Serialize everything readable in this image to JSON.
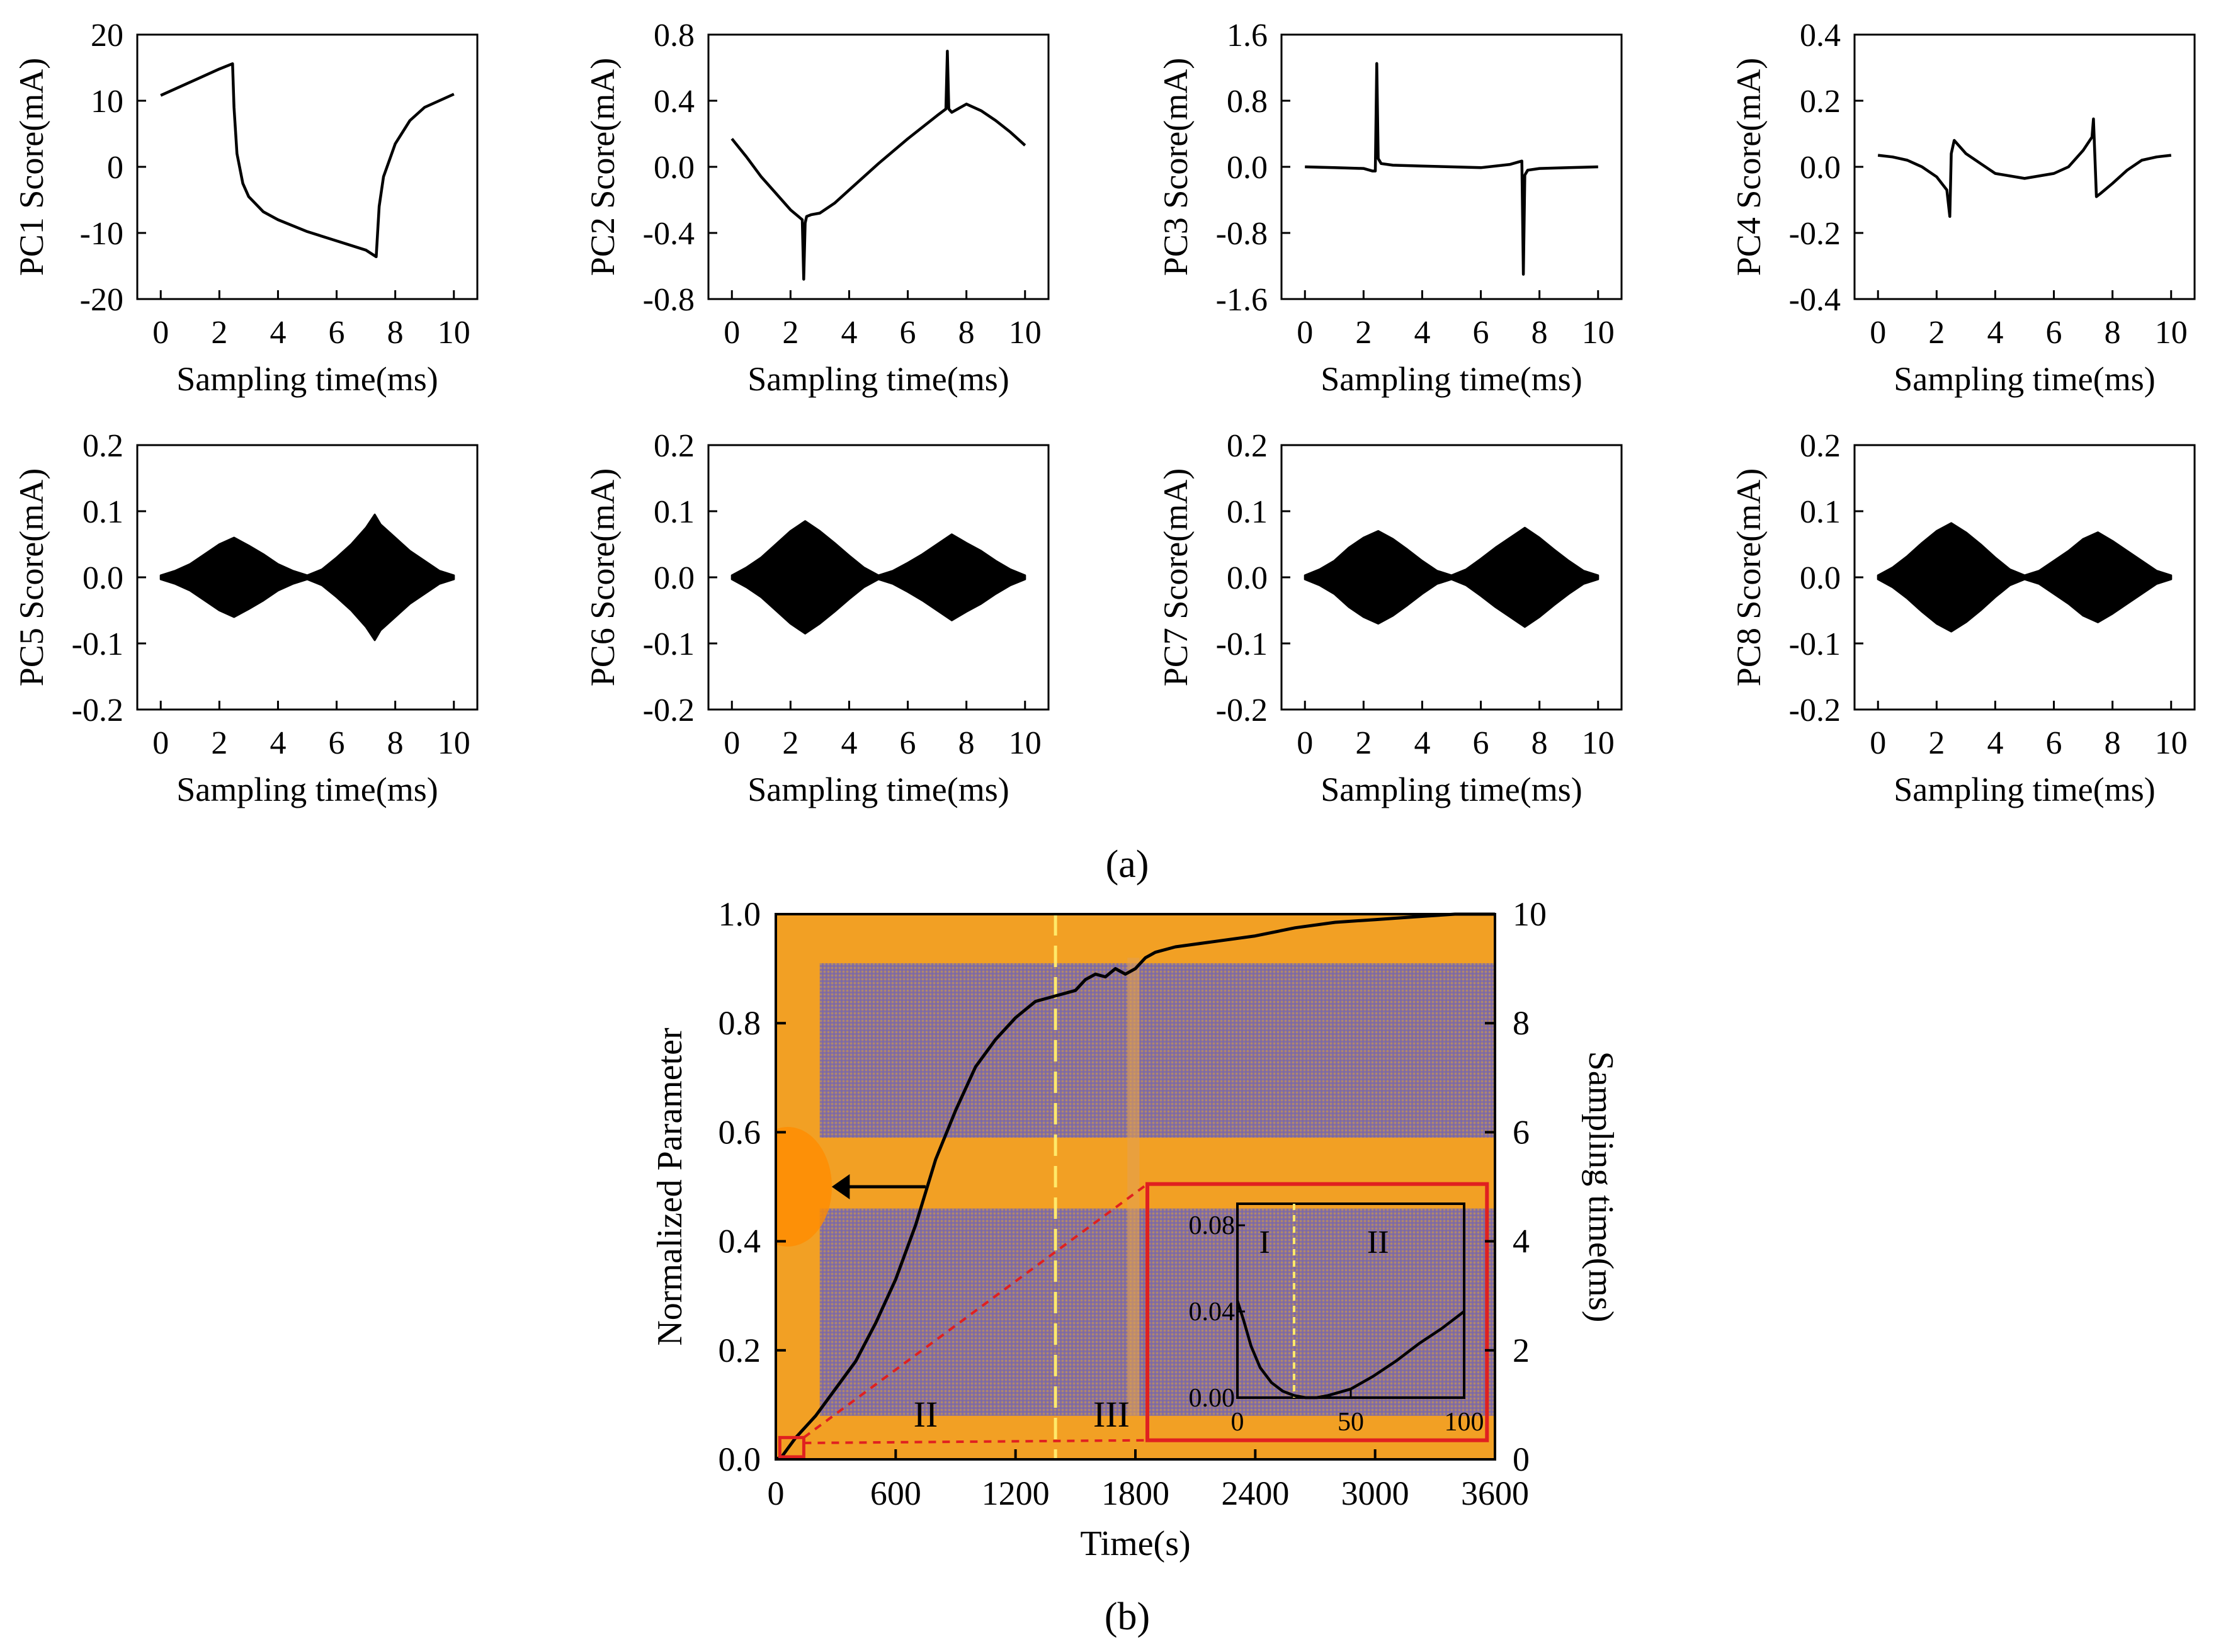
{
  "figure": {
    "panel_a_label": "(a)",
    "panel_b_label": "(b)"
  },
  "chart_data": [
    {
      "id": "pc1",
      "type": "line",
      "ylabel": "PC1 Score(mA)",
      "xlabel": "Sampling time(ms)",
      "xlim": [
        0,
        10
      ],
      "ylim": [
        -20,
        20
      ],
      "xticks": [
        0,
        2,
        4,
        6,
        8,
        10
      ],
      "yticks": [
        -20,
        -10,
        0,
        10,
        20
      ],
      "ytick_labels": [
        "-20",
        "-10",
        "0",
        "10",
        "20"
      ],
      "x": [
        0,
        0.5,
        1,
        1.5,
        2,
        2.45,
        2.5,
        2.6,
        2.8,
        3,
        3.5,
        4,
        5,
        6,
        7,
        7.35,
        7.45,
        7.6,
        8,
        8.5,
        9,
        10
      ],
      "y": [
        10.8,
        11.8,
        12.8,
        13.8,
        14.8,
        15.6,
        9,
        2,
        -2.5,
        -4.5,
        -6.8,
        -8,
        -9.8,
        -11.2,
        -12.6,
        -13.6,
        -6,
        -1.5,
        3.5,
        7,
        9,
        11
      ]
    },
    {
      "id": "pc2",
      "type": "line",
      "ylabel": "PC2 Score(mA)",
      "xlabel": "Sampling time(ms)",
      "xlim": [
        0,
        10
      ],
      "ylim": [
        -0.8,
        0.8
      ],
      "xticks": [
        0,
        2,
        4,
        6,
        8,
        10
      ],
      "yticks": [
        -0.8,
        -0.4,
        0,
        0.4,
        0.8
      ],
      "ytick_labels": [
        "-0.8",
        "-0.4",
        "0.0",
        "0.4",
        "0.8"
      ],
      "x": [
        0,
        0.5,
        1,
        1.5,
        2,
        2.4,
        2.45,
        2.5,
        2.55,
        2.7,
        3,
        3.5,
        4,
        5,
        6,
        7,
        7.3,
        7.35,
        7.4,
        7.5,
        8,
        8.5,
        9,
        9.5,
        10
      ],
      "y": [
        0.17,
        0.06,
        -0.06,
        -0.16,
        -0.26,
        -0.32,
        -0.68,
        -0.34,
        -0.3,
        -0.29,
        -0.28,
        -0.22,
        -0.14,
        0.02,
        0.17,
        0.31,
        0.35,
        0.7,
        0.35,
        0.33,
        0.38,
        0.34,
        0.28,
        0.21,
        0.13
      ]
    },
    {
      "id": "pc3",
      "type": "line",
      "ylabel": "PC3 Score(mA)",
      "xlabel": "Sampling time(ms)",
      "xlim": [
        0,
        10
      ],
      "ylim": [
        -1.6,
        1.6
      ],
      "xticks": [
        0,
        2,
        4,
        6,
        8,
        10
      ],
      "yticks": [
        -1.6,
        -0.8,
        0,
        0.8,
        1.6
      ],
      "ytick_labels": [
        "-1.6",
        "-0.8",
        "0.0",
        "0.8",
        "1.6"
      ],
      "x": [
        0,
        1,
        2,
        2.3,
        2.4,
        2.45,
        2.5,
        2.6,
        3,
        4,
        5,
        6,
        7,
        7.3,
        7.4,
        7.45,
        7.5,
        7.6,
        8,
        9,
        10
      ],
      "y": [
        0,
        -0.01,
        -0.02,
        -0.05,
        -0.05,
        1.25,
        0.1,
        0.04,
        0.02,
        0.01,
        0.0,
        -0.01,
        0.03,
        0.06,
        0.07,
        -1.3,
        -0.1,
        -0.04,
        -0.02,
        -0.01,
        0
      ]
    },
    {
      "id": "pc4",
      "type": "line",
      "ylabel": "PC4 Score(mA)",
      "xlabel": "Sampling time(ms)",
      "xlim": [
        0,
        10
      ],
      "ylim": [
        -0.4,
        0.4
      ],
      "xticks": [
        0,
        2,
        4,
        6,
        8,
        10
      ],
      "yticks": [
        -0.4,
        -0.2,
        0,
        0.2,
        0.4
      ],
      "ytick_labels": [
        "-0.4",
        "-0.2",
        "0.0",
        "0.2",
        "0.4"
      ],
      "x": [
        0,
        0.5,
        1,
        1.5,
        2,
        2.35,
        2.45,
        2.5,
        2.6,
        2.8,
        3,
        3.5,
        4,
        5,
        6,
        6.5,
        7,
        7.3,
        7.35,
        7.45,
        7.6,
        8,
        8.5,
        9,
        9.5,
        10
      ],
      "y": [
        0.035,
        0.03,
        0.02,
        0.0,
        -0.03,
        -0.07,
        -0.15,
        0.04,
        0.08,
        0.06,
        0.04,
        0.01,
        -0.02,
        -0.035,
        -0.02,
        0.0,
        0.05,
        0.09,
        0.145,
        -0.09,
        -0.08,
        -0.05,
        -0.01,
        0.02,
        0.03,
        0.035
      ]
    },
    {
      "id": "pc5",
      "type": "area",
      "ylabel": "PC5 Score(mA)",
      "xlabel": "Sampling time(ms)",
      "xlim": [
        0,
        10
      ],
      "ylim": [
        -0.2,
        0.2
      ],
      "xticks": [
        0,
        2,
        4,
        6,
        8,
        10
      ],
      "yticks": [
        -0.2,
        -0.1,
        0,
        0.1,
        0.2
      ],
      "ytick_labels": [
        "-0.2",
        "-0.1",
        "0.0",
        "0.1",
        "0.2"
      ],
      "x": [
        0,
        0.5,
        1,
        1.5,
        2,
        2.5,
        3,
        3.5,
        4,
        4.5,
        5,
        5.5,
        6,
        6.5,
        7,
        7.3,
        7.5,
        8,
        8.5,
        9,
        9.5,
        10
      ],
      "y_upper": [
        0.003,
        0.01,
        0.02,
        0.035,
        0.05,
        0.06,
        0.048,
        0.035,
        0.02,
        0.01,
        0.003,
        0.012,
        0.03,
        0.05,
        0.075,
        0.095,
        0.08,
        0.06,
        0.04,
        0.025,
        0.01,
        0.003
      ]
    },
    {
      "id": "pc6",
      "type": "area",
      "ylabel": "PC6 Score(mA)",
      "xlabel": "Sampling time(ms)",
      "xlim": [
        0,
        10
      ],
      "ylim": [
        -0.2,
        0.2
      ],
      "xticks": [
        0,
        2,
        4,
        6,
        8,
        10
      ],
      "yticks": [
        -0.2,
        -0.1,
        0,
        0.1,
        0.2
      ],
      "ytick_labels": [
        "-0.2",
        "-0.1",
        "0.0",
        "0.1",
        "0.2"
      ],
      "x": [
        0,
        0.5,
        1,
        1.5,
        2,
        2.5,
        3,
        3.5,
        4,
        4.5,
        5,
        5.5,
        6,
        6.5,
        7,
        7.5,
        8,
        8.5,
        9,
        9.5,
        10
      ],
      "y_upper": [
        0.003,
        0.015,
        0.03,
        0.05,
        0.07,
        0.085,
        0.07,
        0.052,
        0.033,
        0.015,
        0.003,
        0.01,
        0.022,
        0.035,
        0.05,
        0.065,
        0.052,
        0.04,
        0.025,
        0.012,
        0.003
      ]
    },
    {
      "id": "pc7",
      "type": "area",
      "ylabel": "PC7 Score(mA)",
      "xlabel": "Sampling time(ms)",
      "xlim": [
        0,
        10
      ],
      "ylim": [
        -0.2,
        0.2
      ],
      "xticks": [
        0,
        2,
        4,
        6,
        8,
        10
      ],
      "yticks": [
        -0.2,
        -0.1,
        0,
        0.1,
        0.2
      ],
      "ytick_labels": [
        "-0.2",
        "-0.1",
        "0.0",
        "0.1",
        "0.2"
      ],
      "x": [
        0,
        0.5,
        1,
        1.5,
        2,
        2.5,
        3,
        3.5,
        4,
        4.5,
        5,
        5.5,
        6,
        6.5,
        7,
        7.5,
        8,
        8.5,
        9,
        9.5,
        10
      ],
      "y_upper": [
        0.003,
        0.012,
        0.025,
        0.045,
        0.06,
        0.07,
        0.058,
        0.042,
        0.025,
        0.01,
        0.003,
        0.012,
        0.028,
        0.045,
        0.06,
        0.075,
        0.06,
        0.042,
        0.025,
        0.01,
        0.003
      ]
    },
    {
      "id": "pc8",
      "type": "area",
      "ylabel": "PC8 Score(mA)",
      "xlabel": "Sampling time(ms)",
      "xlim": [
        0,
        10
      ],
      "ylim": [
        -0.2,
        0.2
      ],
      "xticks": [
        0,
        2,
        4,
        6,
        8,
        10
      ],
      "yticks": [
        -0.2,
        -0.1,
        0,
        0.1,
        0.2
      ],
      "ytick_labels": [
        "-0.2",
        "-0.1",
        "0.0",
        "0.1",
        "0.2"
      ],
      "x": [
        0,
        0.5,
        1,
        1.5,
        2,
        2.5,
        3,
        3.5,
        4,
        4.5,
        5,
        5.5,
        6,
        6.5,
        7,
        7.5,
        8,
        8.5,
        9,
        9.5,
        10
      ],
      "y_upper": [
        0.003,
        0.015,
        0.032,
        0.052,
        0.07,
        0.082,
        0.068,
        0.05,
        0.03,
        0.012,
        0.003,
        0.01,
        0.025,
        0.04,
        0.058,
        0.068,
        0.055,
        0.04,
        0.025,
        0.01,
        0.003
      ]
    },
    {
      "id": "main_b",
      "type": "line",
      "xlabel": "Time(s)",
      "ylabel_left": "Normalized Parameter",
      "ylabel_right": "Sampling time(ms)",
      "xlim": [
        0,
        3600
      ],
      "ylim": [
        0,
        1
      ],
      "ylim_right": [
        0,
        10
      ],
      "xticks": [
        0,
        600,
        1200,
        1800,
        2400,
        3000,
        3600
      ],
      "yticks": [
        0,
        0.2,
        0.4,
        0.6,
        0.8,
        1.0
      ],
      "ytick_labels": [
        "0.0",
        "0.2",
        "0.4",
        "0.6",
        "0.8",
        "1.0"
      ],
      "yticks_right": [
        0,
        2,
        4,
        6,
        8,
        10
      ],
      "background": "heatmap of sampled current (orange/purple)",
      "x": [
        0,
        30,
        60,
        100,
        150,
        200,
        300,
        400,
        500,
        600,
        700,
        800,
        900,
        1000,
        1100,
        1200,
        1300,
        1400,
        1500,
        1550,
        1600,
        1650,
        1700,
        1750,
        1800,
        1850,
        1900,
        2000,
        2100,
        2200,
        2400,
        2600,
        2800,
        3000,
        3200,
        3400,
        3600
      ],
      "y": [
        0,
        0.005,
        0.02,
        0.04,
        0.06,
        0.08,
        0.13,
        0.18,
        0.25,
        0.33,
        0.43,
        0.55,
        0.64,
        0.72,
        0.77,
        0.81,
        0.84,
        0.85,
        0.86,
        0.88,
        0.89,
        0.885,
        0.9,
        0.89,
        0.9,
        0.92,
        0.93,
        0.94,
        0.945,
        0.95,
        0.96,
        0.975,
        0.985,
        0.99,
        0.995,
        1.0,
        1.0
      ],
      "divider_x": 1400,
      "regions": [
        "II",
        "III"
      ],
      "arrow_direction": "left",
      "inset": {
        "xlim": [
          0,
          100
        ],
        "ylim": [
          0,
          0.09
        ],
        "xticks": [
          0,
          50,
          100
        ],
        "yticks": [
          0,
          0.04,
          0.08
        ],
        "ytick_labels": [
          "0.00",
          "0.04",
          "0.08"
        ],
        "x": [
          0,
          3,
          6,
          10,
          15,
          20,
          25,
          30,
          35,
          40,
          50,
          60,
          70,
          80,
          90,
          100
        ],
        "y": [
          0.045,
          0.035,
          0.024,
          0.014,
          0.007,
          0.003,
          0.001,
          0.0,
          0.0,
          0.001,
          0.004,
          0.01,
          0.017,
          0.025,
          0.032,
          0.04
        ],
        "divider_x": 25,
        "regions": [
          "I",
          "II"
        ]
      }
    }
  ]
}
